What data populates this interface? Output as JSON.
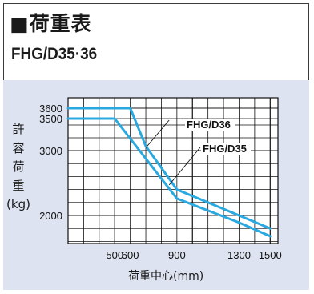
{
  "header": {
    "title": "■荷重表",
    "model": "FHG/D35·36"
  },
  "chart_data": {
    "type": "line",
    "ylabel_chars": [
      "許",
      "容",
      "荷",
      "重",
      "(kg)"
    ],
    "xlabel": "荷重中心(mm)",
    "x_ticks": [
      500,
      600,
      900,
      1300,
      1500
    ],
    "y_ticks": [
      2000,
      3000,
      3500,
      3600
    ],
    "grid": true,
    "series": [
      {
        "name": "FHG/D36",
        "color": "#29a9e0",
        "points": [
          [
            200,
            3600
          ],
          [
            600,
            3600
          ],
          [
            700,
            3070
          ],
          [
            900,
            2400
          ],
          [
            1300,
            2000
          ],
          [
            1500,
            1800
          ]
        ]
      },
      {
        "name": "FHG/D35",
        "color": "#29a9e0",
        "points": [
          [
            200,
            3500
          ],
          [
            500,
            3500
          ],
          [
            900,
            2260
          ],
          [
            1300,
            1890
          ],
          [
            1500,
            1680
          ]
        ]
      }
    ]
  }
}
